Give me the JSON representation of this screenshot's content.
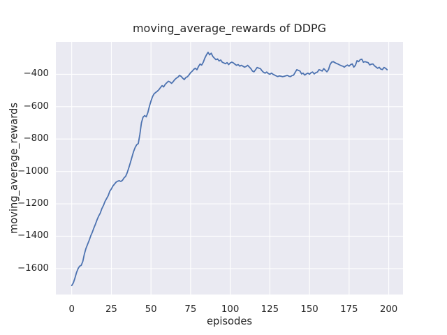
{
  "figure": {
    "title": "moving_average_rewards of DDPG",
    "xlabel": "episodes",
    "ylabel": "moving_average_rewards"
  },
  "colors": {
    "line": "#4c72b0",
    "plot_background": "#eaeaf2",
    "gridline": "#ffffff",
    "text": "#262626",
    "figure_background": "#ffffff"
  },
  "chart_data": {
    "type": "line",
    "title": "moving_average_rewards of DDPG",
    "xlabel": "episodes",
    "ylabel": "moving_average_rewards",
    "grid": true,
    "legend": null,
    "xlim": [
      -10,
      209
    ],
    "ylim": [
      -1760,
      -200
    ],
    "x_ticks": [
      0,
      25,
      50,
      75,
      100,
      125,
      150,
      175,
      200
    ],
    "x_tick_labels": [
      "0",
      "25",
      "50",
      "75",
      "100",
      "125",
      "150",
      "175",
      "200"
    ],
    "y_ticks": [
      -400,
      -600,
      -800,
      -1000,
      -1200,
      -1400,
      -1600
    ],
    "y_tick_labels": [
      "−400",
      "−600",
      "−800",
      "−1000",
      "−1200",
      "−1400",
      "−1600"
    ],
    "series": [
      {
        "name": "moving_average_rewards",
        "x_start": 0,
        "x_step": 1,
        "values": [
          -1705,
          -1688,
          -1660,
          -1625,
          -1600,
          -1585,
          -1580,
          -1555,
          -1510,
          -1475,
          -1450,
          -1425,
          -1398,
          -1375,
          -1348,
          -1325,
          -1298,
          -1275,
          -1258,
          -1230,
          -1210,
          -1185,
          -1168,
          -1150,
          -1122,
          -1108,
          -1090,
          -1078,
          -1066,
          -1060,
          -1057,
          -1062,
          -1055,
          -1040,
          -1030,
          -1008,
          -978,
          -945,
          -912,
          -878,
          -852,
          -835,
          -828,
          -770,
          -700,
          -665,
          -655,
          -663,
          -638,
          -598,
          -565,
          -538,
          -520,
          -512,
          -505,
          -495,
          -482,
          -470,
          -478,
          -462,
          -452,
          -443,
          -448,
          -456,
          -446,
          -433,
          -424,
          -418,
          -407,
          -413,
          -424,
          -433,
          -420,
          -415,
          -404,
          -390,
          -381,
          -370,
          -363,
          -372,
          -352,
          -337,
          -343,
          -325,
          -300,
          -280,
          -264,
          -280,
          -270,
          -290,
          -300,
          -310,
          -305,
          -318,
          -312,
          -326,
          -330,
          -335,
          -328,
          -340,
          -330,
          -325,
          -330,
          -338,
          -345,
          -340,
          -350,
          -345,
          -350,
          -356,
          -352,
          -345,
          -355,
          -365,
          -380,
          -385,
          -372,
          -358,
          -362,
          -365,
          -378,
          -388,
          -393,
          -386,
          -395,
          -400,
          -393,
          -400,
          -405,
          -410,
          -414,
          -410,
          -412,
          -415,
          -413,
          -410,
          -407,
          -412,
          -414,
          -408,
          -405,
          -388,
          -372,
          -376,
          -380,
          -398,
          -393,
          -405,
          -398,
          -393,
          -400,
          -390,
          -386,
          -398,
          -390,
          -386,
          -372,
          -375,
          -380,
          -365,
          -375,
          -385,
          -372,
          -340,
          -325,
          -322,
          -328,
          -333,
          -337,
          -342,
          -347,
          -350,
          -356,
          -348,
          -343,
          -350,
          -340,
          -336,
          -356,
          -344,
          -316,
          -322,
          -310,
          -307,
          -326,
          -322,
          -325,
          -328,
          -342,
          -338,
          -336,
          -348,
          -355,
          -363,
          -357,
          -368,
          -371,
          -358,
          -363,
          -372
        ]
      }
    ]
  }
}
